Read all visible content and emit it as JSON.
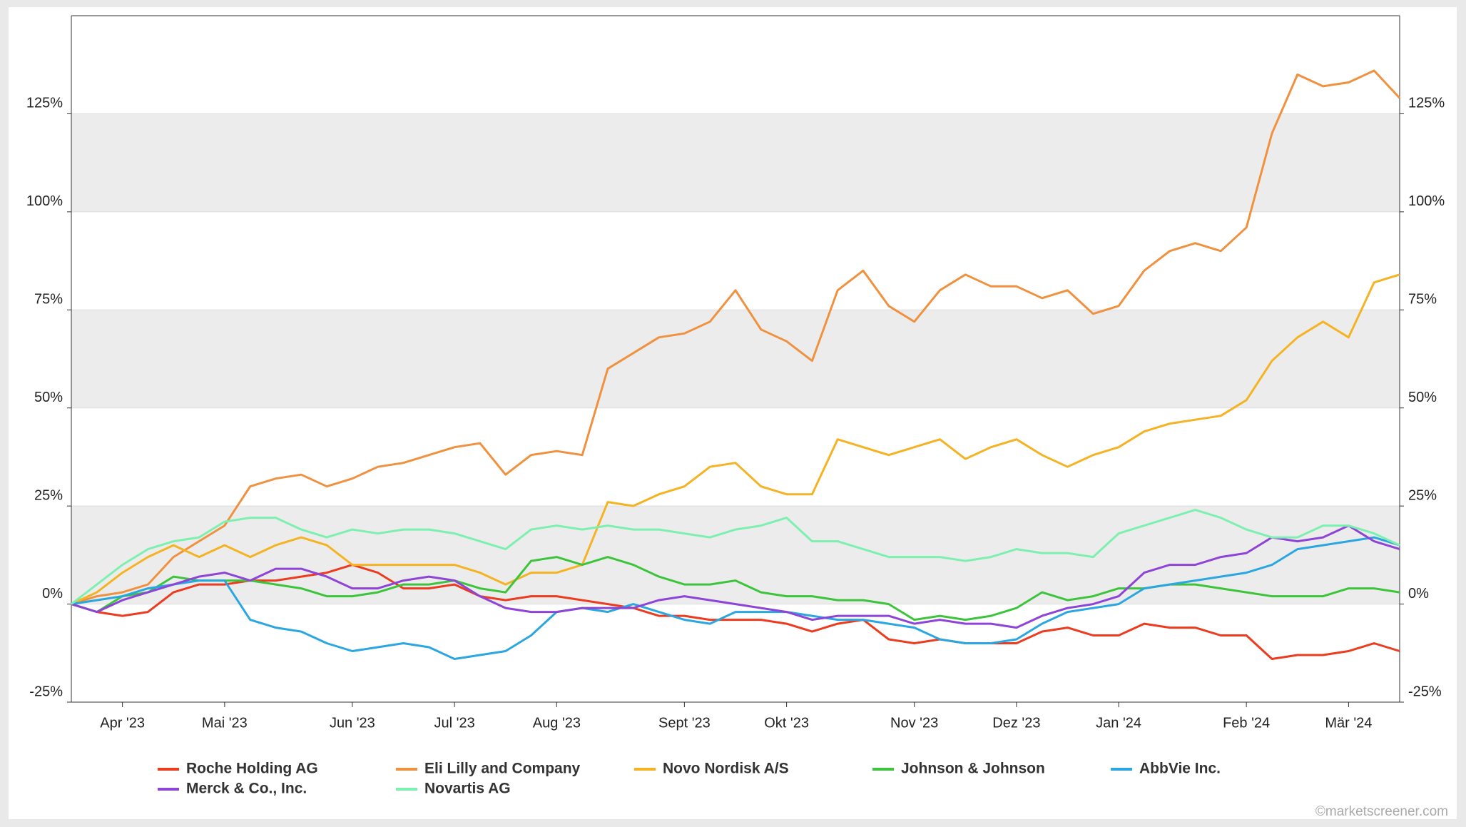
{
  "chart_data": {
    "type": "line",
    "categories": [
      null,
      null,
      "Apr '23",
      null,
      null,
      null,
      "Mai '23",
      null,
      null,
      null,
      null,
      "Jun '23",
      null,
      null,
      null,
      "Jul '23",
      null,
      null,
      null,
      "Aug '23",
      null,
      null,
      null,
      null,
      "Sept '23",
      null,
      null,
      null,
      "Okt '23",
      null,
      null,
      null,
      null,
      "Nov '23",
      null,
      null,
      null,
      "Dez '23",
      null,
      null,
      null,
      "Jan '24",
      null,
      null,
      null,
      null,
      "Feb '24",
      null,
      null,
      null,
      "Mär '24",
      null,
      null
    ],
    "series": [
      {
        "name": "Roche Holding AG",
        "color": "#ec3b1e",
        "values": [
          0,
          -2,
          -3,
          -2,
          3,
          5,
          5,
          6,
          6,
          7,
          8,
          10,
          8,
          4,
          4,
          5,
          2,
          1,
          2,
          2,
          1,
          0,
          -1,
          -3,
          -3,
          -4,
          -4,
          -4,
          -5,
          -7,
          -5,
          -4,
          -9,
          -10,
          -9,
          -10,
          -10,
          -10,
          -7,
          -6,
          -8,
          -8,
          -5,
          -6,
          -6,
          -8,
          -8,
          -14,
          -13,
          -13,
          -12,
          -10,
          -12
        ]
      },
      {
        "name": "Eli Lilly and Company",
        "color": "#f0913f",
        "values": [
          0,
          2,
          3,
          5,
          12,
          16,
          20,
          30,
          32,
          33,
          30,
          32,
          35,
          36,
          38,
          40,
          41,
          33,
          38,
          39,
          38,
          60,
          64,
          68,
          69,
          72,
          80,
          70,
          67,
          62,
          80,
          85,
          76,
          72,
          80,
          84,
          81,
          81,
          78,
          80,
          74,
          76,
          85,
          90,
          92,
          90,
          96,
          120,
          135,
          132,
          133,
          136,
          129
        ]
      },
      {
        "name": "Novo Nordisk A/S",
        "color": "#f5b324",
        "values": [
          0,
          3,
          8,
          12,
          15,
          12,
          15,
          12,
          15,
          17,
          15,
          10,
          10,
          10,
          10,
          10,
          8,
          5,
          8,
          8,
          10,
          26,
          25,
          28,
          30,
          35,
          36,
          30,
          28,
          28,
          42,
          40,
          38,
          40,
          42,
          37,
          40,
          42,
          38,
          35,
          38,
          40,
          44,
          46,
          47,
          48,
          52,
          62,
          68,
          72,
          68,
          82,
          84
        ]
      },
      {
        "name": "Johnson & Johnson",
        "color": "#3cc43c",
        "values": [
          0,
          -2,
          2,
          3,
          7,
          6,
          6,
          6,
          5,
          4,
          2,
          2,
          3,
          5,
          5,
          6,
          4,
          3,
          11,
          12,
          10,
          12,
          10,
          7,
          5,
          5,
          6,
          3,
          2,
          2,
          1,
          1,
          0,
          -4,
          -3,
          -4,
          -3,
          -1,
          3,
          1,
          2,
          4,
          4,
          5,
          5,
          4,
          3,
          2,
          2,
          2,
          4,
          4,
          3
        ]
      },
      {
        "name": "AbbVie Inc.",
        "color": "#2aa6e0",
        "values": [
          0,
          1,
          2,
          4,
          5,
          6,
          6,
          -4,
          -6,
          -7,
          -10,
          -12,
          -11,
          -10,
          -11,
          -14,
          -13,
          -12,
          -8,
          -2,
          -1,
          -2,
          0,
          -2,
          -4,
          -5,
          -2,
          -2,
          -2,
          -3,
          -4,
          -4,
          -5,
          -6,
          -9,
          -10,
          -10,
          -9,
          -5,
          -2,
          -1,
          0,
          4,
          5,
          6,
          7,
          8,
          10,
          14,
          15,
          16,
          17,
          15
        ]
      },
      {
        "name": "Merck & Co., Inc.",
        "color": "#8e44d6",
        "values": [
          0,
          -2,
          1,
          3,
          5,
          7,
          8,
          6,
          9,
          9,
          7,
          4,
          4,
          6,
          7,
          6,
          2,
          -1,
          -2,
          -2,
          -1,
          -1,
          -1,
          1,
          2,
          1,
          0,
          -1,
          -2,
          -4,
          -3,
          -3,
          -3,
          -5,
          -4,
          -5,
          -5,
          -6,
          -3,
          -1,
          0,
          2,
          8,
          10,
          10,
          12,
          13,
          17,
          16,
          17,
          20,
          16,
          14
        ]
      },
      {
        "name": "Novartis AG",
        "color": "#7df0b0",
        "values": [
          0,
          5,
          10,
          14,
          16,
          17,
          21,
          22,
          22,
          19,
          17,
          19,
          18,
          19,
          19,
          18,
          16,
          14,
          19,
          20,
          19,
          20,
          19,
          19,
          18,
          17,
          19,
          20,
          22,
          16,
          16,
          14,
          12,
          12,
          12,
          11,
          12,
          14,
          13,
          13,
          12,
          18,
          20,
          22,
          24,
          22,
          19,
          17,
          17,
          20,
          20,
          18,
          15
        ]
      }
    ],
    "ylim": [
      -25,
      150
    ],
    "yticks": [
      {
        "value": -25,
        "label": "-25%"
      },
      {
        "value": 0,
        "label": "0%"
      },
      {
        "value": 25,
        "label": "25%"
      },
      {
        "value": 50,
        "label": "50%"
      },
      {
        "value": 75,
        "label": "75%"
      },
      {
        "value": 100,
        "label": "100%"
      },
      {
        "value": 125,
        "label": "125%"
      }
    ],
    "grid": true,
    "credit": "©marketscreener.com"
  }
}
